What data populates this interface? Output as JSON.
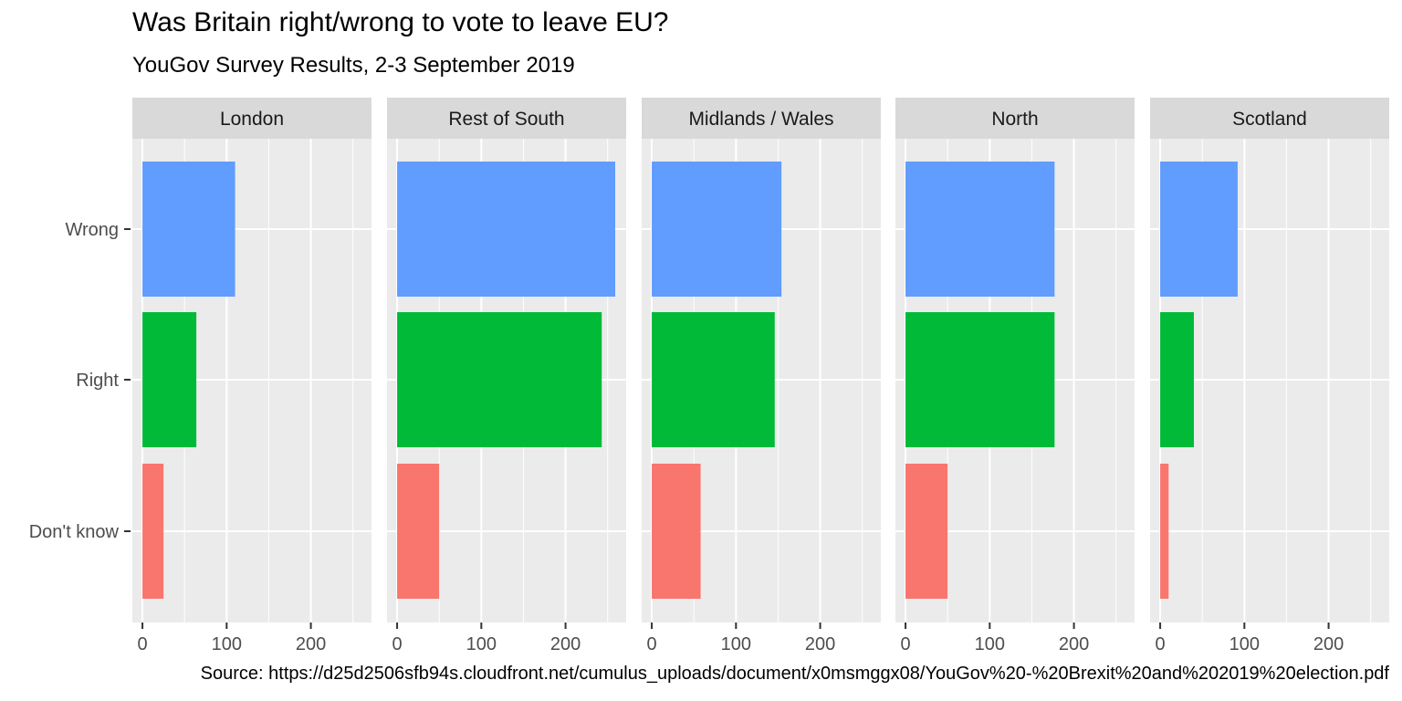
{
  "chart_data": {
    "type": "bar",
    "orientation": "horizontal",
    "title": "Was Britain right/wrong to vote to leave EU?",
    "subtitle": "YouGov Survey Results, 2-3 September 2019",
    "caption": "Source: https://d25d2506sfb94s.cloudfront.net/cumulus_uploads/document/x0msmggx08/YouGov%20-%20Brexit%20and%202019%20election.pdf",
    "categories": [
      "Don't know",
      "Right",
      "Wrong"
    ],
    "category_colors": {
      "Wrong": "#619CFF",
      "Right": "#00BA38",
      "Don't know": "#F8766D"
    },
    "facets": [
      {
        "name": "London",
        "values": {
          "Wrong": 110,
          "Right": 64,
          "Don't know": 25
        }
      },
      {
        "name": "Rest of South",
        "values": {
          "Wrong": 259,
          "Right": 243,
          "Don't know": 50
        }
      },
      {
        "name": "Midlands / Wales",
        "values": {
          "Wrong": 154,
          "Right": 146,
          "Don't know": 58
        }
      },
      {
        "name": "North",
        "values": {
          "Wrong": 177,
          "Right": 177,
          "Don't know": 50
        }
      },
      {
        "name": "Scotland",
        "values": {
          "Wrong": 92,
          "Right": 40,
          "Don't know": 10
        }
      }
    ],
    "x_ticks": [
      0,
      100,
      200
    ],
    "xlim": [
      -12,
      272
    ],
    "grid": true,
    "legend": "none"
  },
  "colors": {
    "panel_bg": "#EBEBEB",
    "strip_bg": "#D9D9D9",
    "grid": "#FFFFFF",
    "axis_text": "#4D4D4D",
    "tick": "#333333"
  }
}
